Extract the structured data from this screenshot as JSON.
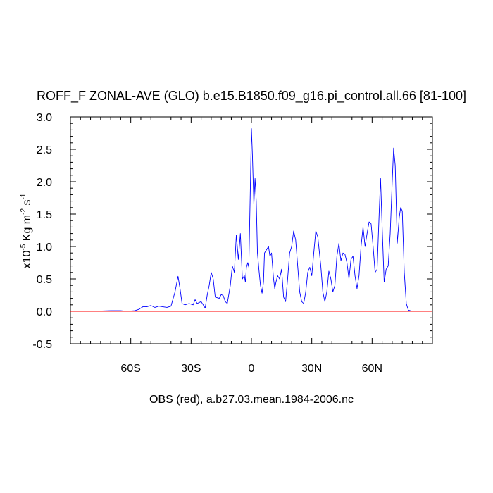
{
  "chart_data": {
    "type": "line",
    "title": "ROFF_F ZONAL-AVE (GLO) b.e15.B1850.f09_g16.pi_control.all.66 [81-100]",
    "xlabel": "OBS (red), a.b27.03.mean.1984-2006.nc",
    "ylabel": {
      "prefix": "x10",
      "exp1": "-5",
      "unit": " Kg m",
      "exp2": "-2",
      "unit2": " s",
      "exp3": "-1"
    },
    "xlim": [
      -90,
      90
    ],
    "ylim": [
      -0.5,
      3.0
    ],
    "xticks": [
      {
        "value": -60,
        "label": "60S"
      },
      {
        "value": -30,
        "label": "30S"
      },
      {
        "value": 0,
        "label": "0"
      },
      {
        "value": 30,
        "label": "30N"
      },
      {
        "value": 60,
        "label": "60N"
      }
    ],
    "yticks": [
      {
        "value": -0.5,
        "label": "-0.5"
      },
      {
        "value": 0.0,
        "label": "0.0"
      },
      {
        "value": 0.5,
        "label": "0.5"
      },
      {
        "value": 1.0,
        "label": "1.0"
      },
      {
        "value": 1.5,
        "label": "1.5"
      },
      {
        "value": 2.0,
        "label": "2.0"
      },
      {
        "value": 2.5,
        "label": "2.5"
      },
      {
        "value": 3.0,
        "label": "3.0"
      }
    ],
    "series": [
      {
        "color": "#0000ff",
        "points": [
          [
            -90,
            0.0
          ],
          [
            -80,
            0.0
          ],
          [
            -70,
            0.01
          ],
          [
            -65,
            0.01
          ],
          [
            -62,
            0.0
          ],
          [
            -58,
            0.01
          ],
          [
            -56,
            0.03
          ],
          [
            -54,
            0.07
          ],
          [
            -52,
            0.07
          ],
          [
            -50,
            0.09
          ],
          [
            -48,
            0.06
          ],
          [
            -46,
            0.08
          ],
          [
            -44,
            0.07
          ],
          [
            -42,
            0.06
          ],
          [
            -40,
            0.08
          ],
          [
            -38,
            0.3
          ],
          [
            -36.5,
            0.54
          ],
          [
            -35.5,
            0.35
          ],
          [
            -34.5,
            0.12
          ],
          [
            -33,
            0.1
          ],
          [
            -31,
            0.12
          ],
          [
            -29,
            0.1
          ],
          [
            -28,
            0.18
          ],
          [
            -27,
            0.12
          ],
          [
            -25,
            0.15
          ],
          [
            -23,
            0.05
          ],
          [
            -22,
            0.25
          ],
          [
            -21,
            0.4
          ],
          [
            -20,
            0.6
          ],
          [
            -19,
            0.5
          ],
          [
            -18,
            0.22
          ],
          [
            -16,
            0.2
          ],
          [
            -15,
            0.26
          ],
          [
            -14,
            0.24
          ],
          [
            -13,
            0.15
          ],
          [
            -12,
            0.12
          ],
          [
            -10.5,
            0.4
          ],
          [
            -9.5,
            0.7
          ],
          [
            -8.5,
            0.6
          ],
          [
            -7.5,
            1.18
          ],
          [
            -6.5,
            0.8
          ],
          [
            -5.5,
            1.2
          ],
          [
            -4.5,
            0.5
          ],
          [
            -3.5,
            0.55
          ],
          [
            -3,
            0.45
          ],
          [
            -2.5,
            0.68
          ],
          [
            -1.8,
            0.75
          ],
          [
            -1.3,
            0.68
          ],
          [
            -0.6,
            1.8
          ],
          [
            0,
            2.82
          ],
          [
            0.5,
            2.4
          ],
          [
            1.2,
            1.65
          ],
          [
            1.8,
            2.05
          ],
          [
            2.4,
            1.7
          ],
          [
            3,
            0.9
          ],
          [
            3.8,
            0.62
          ],
          [
            4.5,
            0.4
          ],
          [
            5.3,
            0.28
          ],
          [
            6,
            0.45
          ],
          [
            6.5,
            0.9
          ],
          [
            7.5,
            0.95
          ],
          [
            8.5,
            1.0
          ],
          [
            9.2,
            0.85
          ],
          [
            10,
            0.9
          ],
          [
            11,
            0.5
          ],
          [
            11.6,
            0.35
          ],
          [
            12.2,
            0.45
          ],
          [
            13,
            0.55
          ],
          [
            14,
            0.5
          ],
          [
            15,
            0.65
          ],
          [
            16,
            0.22
          ],
          [
            17,
            0.15
          ],
          [
            18,
            0.5
          ],
          [
            19,
            0.9
          ],
          [
            20,
            1.0
          ],
          [
            21,
            1.24
          ],
          [
            22,
            1.1
          ],
          [
            23,
            0.7
          ],
          [
            24,
            0.3
          ],
          [
            25,
            0.15
          ],
          [
            26,
            0.12
          ],
          [
            27,
            0.3
          ],
          [
            28,
            0.6
          ],
          [
            29,
            0.68
          ],
          [
            30,
            0.55
          ],
          [
            31,
            0.9
          ],
          [
            32,
            1.24
          ],
          [
            33,
            1.15
          ],
          [
            34.5,
            0.7
          ],
          [
            35.5,
            0.3
          ],
          [
            36.5,
            0.15
          ],
          [
            37.5,
            0.3
          ],
          [
            38.5,
            0.62
          ],
          [
            39.5,
            0.5
          ],
          [
            40.5,
            0.3
          ],
          [
            41.5,
            0.4
          ],
          [
            42.5,
            0.85
          ],
          [
            43.5,
            1.05
          ],
          [
            44.5,
            0.78
          ],
          [
            45.5,
            0.9
          ],
          [
            46.5,
            0.88
          ],
          [
            47.5,
            0.75
          ],
          [
            48.5,
            0.5
          ],
          [
            49.5,
            0.8
          ],
          [
            50.5,
            0.85
          ],
          [
            51.5,
            0.55
          ],
          [
            52.5,
            0.35
          ],
          [
            53.5,
            0.55
          ],
          [
            54.5,
            1.0
          ],
          [
            55.5,
            1.3
          ],
          [
            56.5,
            1.0
          ],
          [
            57.5,
            1.2
          ],
          [
            58.5,
            1.38
          ],
          [
            59.5,
            1.35
          ],
          [
            60.5,
            1.0
          ],
          [
            61.5,
            0.6
          ],
          [
            62.5,
            0.65
          ],
          [
            63.5,
            1.5
          ],
          [
            64.2,
            2.05
          ],
          [
            65,
            1.3
          ],
          [
            66,
            0.45
          ],
          [
            67,
            0.65
          ],
          [
            68,
            0.7
          ],
          [
            69,
            1.2
          ],
          [
            70,
            2.0
          ],
          [
            70.7,
            2.52
          ],
          [
            71.5,
            2.25
          ],
          [
            72.5,
            1.05
          ],
          [
            73.5,
            1.45
          ],
          [
            74.2,
            1.6
          ],
          [
            75,
            1.55
          ],
          [
            76,
            0.6
          ],
          [
            77,
            0.12
          ],
          [
            78,
            0.02
          ],
          [
            80,
            0.0
          ],
          [
            85,
            0.0
          ],
          [
            90,
            0.0
          ]
        ]
      },
      {
        "color": "#ff0000",
        "points": [
          [
            -90,
            0.0
          ],
          [
            90,
            0.0
          ]
        ]
      }
    ],
    "zero_line": true,
    "grid": false
  }
}
